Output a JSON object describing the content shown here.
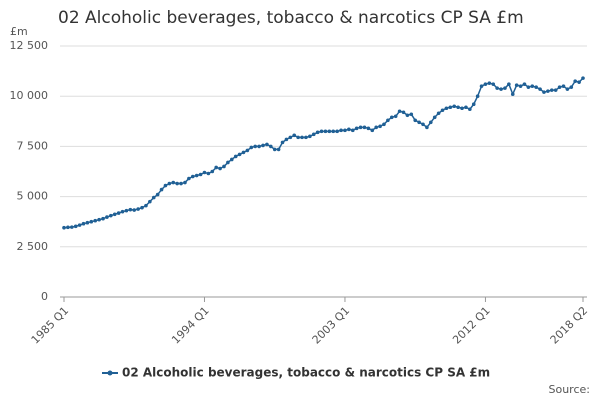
{
  "chart_data": {
    "type": "line",
    "title": "02 Alcoholic beverages, tobacco & narcotics CP SA £m",
    "y_label": "£m",
    "source": "Source:",
    "categories": [
      "1985 Q1",
      null,
      null,
      null,
      null,
      null,
      null,
      null,
      null,
      null,
      null,
      null,
      null,
      null,
      null,
      null,
      null,
      null,
      null,
      null,
      null,
      null,
      null,
      null,
      null,
      null,
      null,
      null,
      null,
      null,
      null,
      null,
      null,
      null,
      null,
      null,
      "1994 Q1",
      null,
      null,
      null,
      null,
      null,
      null,
      null,
      null,
      null,
      null,
      null,
      null,
      null,
      null,
      null,
      null,
      null,
      null,
      null,
      null,
      null,
      null,
      null,
      null,
      null,
      null,
      null,
      null,
      null,
      null,
      null,
      null,
      null,
      null,
      null,
      "2003 Q1",
      null,
      null,
      null,
      null,
      null,
      null,
      null,
      null,
      null,
      null,
      null,
      null,
      null,
      null,
      null,
      null,
      null,
      null,
      null,
      null,
      null,
      null,
      null,
      null,
      null,
      null,
      null,
      null,
      null,
      null,
      null,
      null,
      null,
      null,
      null,
      "2012 Q1",
      null,
      null,
      null,
      null,
      null,
      null,
      null,
      null,
      null,
      null,
      null,
      null,
      null,
      null,
      null,
      null,
      null,
      null,
      null,
      null,
      null,
      null,
      null,
      null,
      "2018 Q2"
    ],
    "series": [
      {
        "name": "02 Alcoholic beverages, tobacco & narcotics CP SA £m",
        "color": "#206095",
        "values": [
          3450,
          3470,
          3480,
          3520,
          3580,
          3650,
          3700,
          3750,
          3800,
          3850,
          3900,
          3980,
          4050,
          4120,
          4180,
          4250,
          4300,
          4350,
          4330,
          4380,
          4450,
          4550,
          4750,
          4950,
          5100,
          5350,
          5550,
          5650,
          5700,
          5650,
          5650,
          5700,
          5900,
          6000,
          6050,
          6100,
          6200,
          6150,
          6250,
          6450,
          6400,
          6500,
          6700,
          6850,
          7000,
          7100,
          7200,
          7300,
          7450,
          7500,
          7500,
          7550,
          7600,
          7500,
          7350,
          7350,
          7700,
          7850,
          7950,
          8050,
          7950,
          7950,
          7950,
          8000,
          8100,
          8200,
          8250,
          8250,
          8250,
          8250,
          8250,
          8300,
          8300,
          8350,
          8300,
          8400,
          8450,
          8450,
          8400,
          8300,
          8450,
          8500,
          8600,
          8800,
          8950,
          9000,
          9250,
          9200,
          9050,
          9100,
          8800,
          8700,
          8600,
          8450,
          8700,
          8950,
          9150,
          9300,
          9400,
          9450,
          9500,
          9450,
          9400,
          9450,
          9350,
          9600,
          10000,
          10500,
          10600,
          10650,
          10600,
          10400,
          10350,
          10400,
          10600,
          10100,
          10550,
          10500,
          10600,
          10450,
          10500,
          10450,
          10350,
          10200,
          10250,
          10300,
          10300,
          10450,
          10500,
          10350,
          10450,
          10750,
          10700,
          10900
        ]
      }
    ],
    "ylim": [
      0,
      12500
    ],
    "yticks": [
      0,
      {
        "value": 2500,
        "label": "2 500"
      },
      {
        "value": 5000,
        "label": "5 000"
      },
      {
        "value": 7500,
        "label": "7 500"
      },
      {
        "value": 10000,
        "label": "10 000"
      },
      {
        "value": 12500,
        "label": "12 500"
      }
    ],
    "grid": true
  }
}
